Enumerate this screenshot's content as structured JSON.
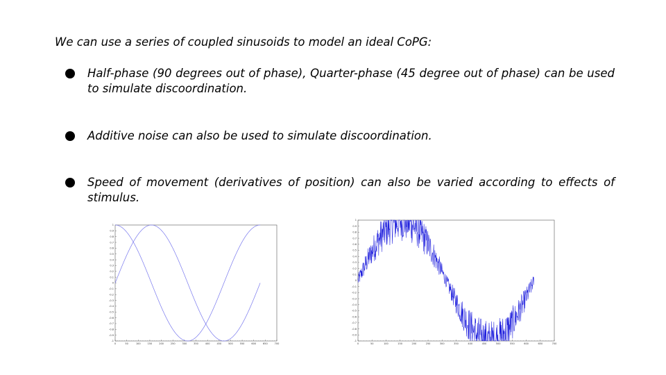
{
  "slide": {
    "intro": "We can use a series of coupled sinusoids to model an ideal CoPG:",
    "bullets": [
      {
        "text": "Half-phase (90 degrees out of phase), Quarter-phase (45 degree out of phase) can be used to simulate discoordination."
      },
      {
        "text": "Additive noise can also be used to simulate discoordination."
      },
      {
        "text": "Speed of movement (derivatives of position) can also be varied according to effects of stimulus."
      }
    ]
  },
  "chart_data": [
    {
      "type": "line",
      "title": "",
      "xlabel": "",
      "ylabel": "",
      "xlim": [
        0,
        700
      ],
      "ylim": [
        -1,
        1
      ],
      "grid": false,
      "x_ticks": [
        "0",
        "50",
        "100",
        "150",
        "200",
        "250",
        "300",
        "350",
        "400",
        "450",
        "500",
        "550",
        "600",
        "650",
        "700"
      ],
      "y_ticks": [
        "1",
        "0.9",
        "0.8",
        "0.7",
        "0.6",
        "0.5",
        "0.4",
        "0.3",
        "0.2",
        "0.1",
        "0",
        "-0.1",
        "-0.2",
        "-0.3",
        "-0.4",
        "-0.5",
        "-0.6",
        "-0.7",
        "-0.8",
        "-0.9",
        "-1"
      ],
      "line_color": "#7777ee",
      "series": [
        {
          "formula": "sin",
          "x_start": 0,
          "x_end": 628,
          "period": 628
        },
        {
          "formula": "cos",
          "x_start": 0,
          "x_end": 628,
          "period": 628
        }
      ]
    },
    {
      "type": "line",
      "title": "",
      "xlabel": "",
      "ylabel": "",
      "xlim": [
        0,
        700
      ],
      "ylim": [
        -1,
        1
      ],
      "grid": false,
      "x_ticks": [
        "0",
        "50",
        "100",
        "150",
        "200",
        "250",
        "300",
        "350",
        "400",
        "450",
        "500",
        "550",
        "600",
        "650",
        "700"
      ],
      "y_ticks": [
        "1",
        "0.9",
        "0.8",
        "0.7",
        "0.6",
        "0.5",
        "0.4",
        "0.3",
        "0.2",
        "0.1",
        "0",
        "-0.1",
        "-0.2",
        "-0.3",
        "-0.4",
        "-0.5",
        "-0.6",
        "-0.7",
        "-0.8",
        "-0.9",
        "-1"
      ],
      "line_color": "#1f1fdd",
      "series": [
        {
          "formula": "sin-plus-noise",
          "x_start": 0,
          "x_end": 628,
          "period": 628,
          "noise_amplitude": 0.35,
          "samples": 630
        }
      ]
    }
  ]
}
